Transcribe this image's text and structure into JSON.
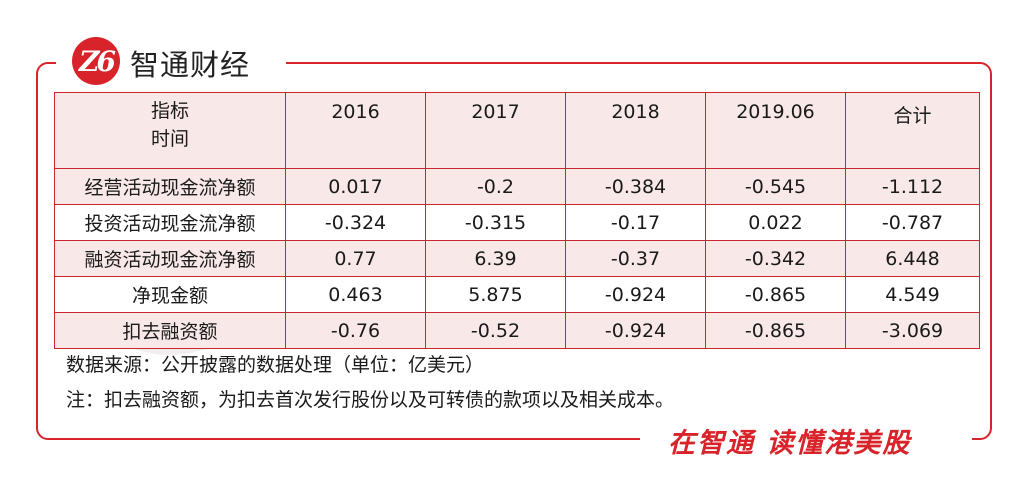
{
  "brand": {
    "logo_mark": "Z6",
    "name": "智通财经",
    "slogan": "在智通 读懂港美股",
    "accent_color": "#d8232a",
    "watermark_text": "智通财经"
  },
  "table": {
    "corner_line1": "指标",
    "corner_line2": "时间",
    "columns": [
      "2016",
      "2017",
      "2018",
      "2019.06",
      "合计"
    ],
    "rows": [
      {
        "label": "经营活动现金流净额",
        "values": [
          "0.017",
          "-0.2",
          "-0.384",
          "-0.545",
          "-1.112"
        ]
      },
      {
        "label": "投资活动现金流净额",
        "values": [
          "-0.324",
          "-0.315",
          "-0.17",
          "0.022",
          "-0.787"
        ]
      },
      {
        "label": "融资活动现金流净额",
        "values": [
          "0.77",
          "6.39",
          "-0.37",
          "-0.342",
          "6.448"
        ]
      },
      {
        "label": "净现金额",
        "values": [
          "0.463",
          "5.875",
          "-0.924",
          "-0.865",
          "4.549"
        ]
      },
      {
        "label": "扣去融资额",
        "values": [
          "-0.76",
          "-0.52",
          "-0.924",
          "-0.865",
          "-3.069"
        ]
      }
    ]
  },
  "notes": {
    "source": "数据来源：公开披露的数据处理（单位：亿美元）",
    "remark": "注：扣去融资额，为扣去首次发行股份以及可转债的款项以及相关成本。"
  }
}
